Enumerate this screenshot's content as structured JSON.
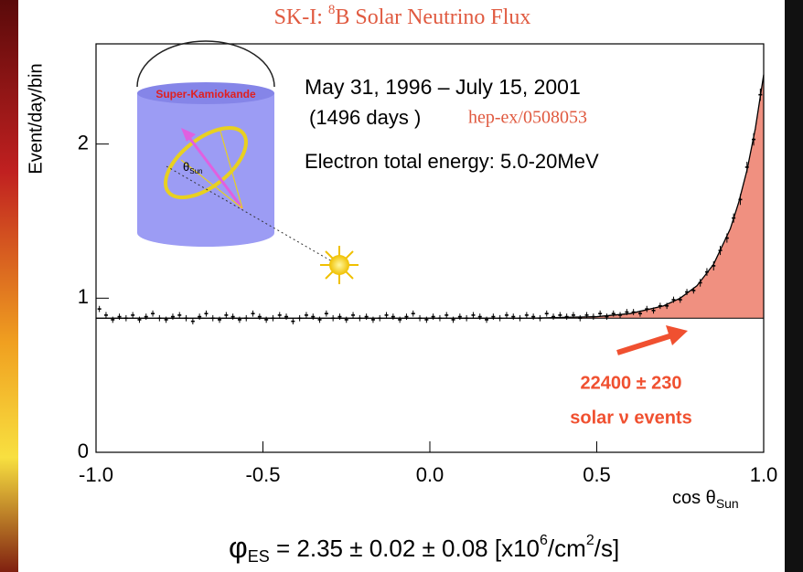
{
  "chart_data": {
    "type": "errorbar",
    "title": {
      "prefix": "SK-I: ",
      "superscript": "8",
      "suffix": "B Solar Neutrino Flux"
    },
    "y_label": "Event/day/bin",
    "x_label": {
      "main": "cos θ",
      "subscript": "Sun"
    },
    "annotations": {
      "period": "May 31, 1996 – July 15, 2001",
      "days": "(1496 days )",
      "reference": "hep-ex/0508053",
      "energy": "Electron total energy: 5.0-20MeV",
      "events_count": "22400 ± 230",
      "events_label": "solar ν events",
      "detector": "Super-Kamiokande",
      "angle": {
        "main": "θ",
        "subscript": "Sun"
      }
    },
    "formula": {
      "symbol": "φ",
      "symbol_subscript": "ES",
      "body": " = 2.35 ± 0.02 ± 0.08  [x10",
      "exp1": "6",
      "mid": "/cm",
      "exp2": "2",
      "tail": "/s]"
    },
    "xlim": [
      -1,
      1
    ],
    "ylim": [
      0,
      2.65
    ],
    "xticks": [
      {
        "value": -1,
        "label": "-1.0"
      },
      {
        "value": -0.5,
        "label": "-0.5"
      },
      {
        "value": 0,
        "label": "0.0"
      },
      {
        "value": 0.5,
        "label": "0.5"
      },
      {
        "value": 1,
        "label": "1.0"
      }
    ],
    "yticks": [
      0,
      1,
      2
    ],
    "color": "#000000",
    "x": [
      -0.99,
      -0.97,
      -0.95,
      -0.93,
      -0.91,
      -0.89,
      -0.87,
      -0.85,
      -0.83,
      -0.81,
      -0.79,
      -0.77,
      -0.75,
      -0.73,
      -0.71,
      -0.69,
      -0.67,
      -0.65,
      -0.63,
      -0.61,
      -0.59,
      -0.57,
      -0.55,
      -0.53,
      -0.51,
      -0.49,
      -0.47,
      -0.45,
      -0.43,
      -0.41,
      -0.39,
      -0.37,
      -0.35,
      -0.33,
      -0.31,
      -0.29,
      -0.27,
      -0.25,
      -0.23,
      -0.21,
      -0.19,
      -0.17,
      -0.15,
      -0.13,
      -0.11,
      -0.09,
      -0.07,
      -0.05,
      -0.03,
      -0.01,
      0.01,
      0.03,
      0.05,
      0.07,
      0.09,
      0.11,
      0.13,
      0.15,
      0.17,
      0.19,
      0.21,
      0.23,
      0.25,
      0.27,
      0.29,
      0.31,
      0.33,
      0.35,
      0.37,
      0.39,
      0.41,
      0.43,
      0.45,
      0.47,
      0.49,
      0.51,
      0.53,
      0.55,
      0.57,
      0.59,
      0.61,
      0.63,
      0.65,
      0.67,
      0.69,
      0.71,
      0.73,
      0.75,
      0.77,
      0.79,
      0.81,
      0.83,
      0.85,
      0.87,
      0.89,
      0.91,
      0.93,
      0.95,
      0.97,
      0.99
    ],
    "values": [
      0.93,
      0.89,
      0.86,
      0.88,
      0.87,
      0.89,
      0.86,
      0.88,
      0.9,
      0.87,
      0.86,
      0.88,
      0.89,
      0.87,
      0.85,
      0.88,
      0.9,
      0.87,
      0.86,
      0.89,
      0.88,
      0.86,
      0.87,
      0.9,
      0.88,
      0.86,
      0.87,
      0.89,
      0.88,
      0.85,
      0.87,
      0.89,
      0.88,
      0.86,
      0.9,
      0.87,
      0.88,
      0.86,
      0.89,
      0.87,
      0.88,
      0.86,
      0.87,
      0.89,
      0.88,
      0.86,
      0.88,
      0.9,
      0.87,
      0.86,
      0.88,
      0.87,
      0.89,
      0.86,
      0.88,
      0.87,
      0.89,
      0.88,
      0.86,
      0.88,
      0.87,
      0.89,
      0.88,
      0.87,
      0.89,
      0.88,
      0.87,
      0.9,
      0.88,
      0.89,
      0.88,
      0.89,
      0.87,
      0.89,
      0.88,
      0.9,
      0.88,
      0.9,
      0.89,
      0.91,
      0.91,
      0.9,
      0.93,
      0.92,
      0.95,
      0.95,
      0.99,
      0.99,
      1.04,
      1.05,
      1.1,
      1.17,
      1.21,
      1.31,
      1.39,
      1.52,
      1.64,
      1.85,
      2.03,
      2.32
    ],
    "errors": [
      0.02,
      0.02,
      0.02,
      0.02,
      0.02,
      0.02,
      0.02,
      0.02,
      0.02,
      0.02,
      0.02,
      0.02,
      0.02,
      0.02,
      0.02,
      0.02,
      0.02,
      0.02,
      0.02,
      0.02,
      0.02,
      0.02,
      0.02,
      0.02,
      0.02,
      0.02,
      0.02,
      0.02,
      0.02,
      0.02,
      0.02,
      0.02,
      0.02,
      0.02,
      0.02,
      0.02,
      0.02,
      0.02,
      0.02,
      0.02,
      0.02,
      0.02,
      0.02,
      0.02,
      0.02,
      0.02,
      0.02,
      0.02,
      0.02,
      0.02,
      0.02,
      0.02,
      0.02,
      0.02,
      0.02,
      0.02,
      0.02,
      0.02,
      0.02,
      0.02,
      0.02,
      0.02,
      0.02,
      0.02,
      0.02,
      0.02,
      0.02,
      0.02,
      0.02,
      0.02,
      0.02,
      0.02,
      0.02,
      0.02,
      0.02,
      0.02,
      0.02,
      0.02,
      0.02,
      0.02,
      0.02,
      0.02,
      0.02,
      0.02,
      0.02,
      0.02,
      0.02,
      0.02,
      0.02,
      0.02,
      0.025,
      0.025,
      0.03,
      0.03,
      0.03,
      0.03,
      0.035,
      0.035,
      0.04,
      0.04
    ],
    "fit": {
      "color": "#f09080",
      "x": [
        -1,
        0.3,
        0.5,
        0.6,
        0.7,
        0.75,
        0.8,
        0.85,
        0.9,
        0.925,
        0.95,
        0.975,
        1
      ],
      "values": [
        0.87,
        0.87,
        0.88,
        0.9,
        0.95,
        1.0,
        1.08,
        1.22,
        1.45,
        1.62,
        1.83,
        2.1,
        2.45
      ]
    },
    "background_level": 0.87
  }
}
